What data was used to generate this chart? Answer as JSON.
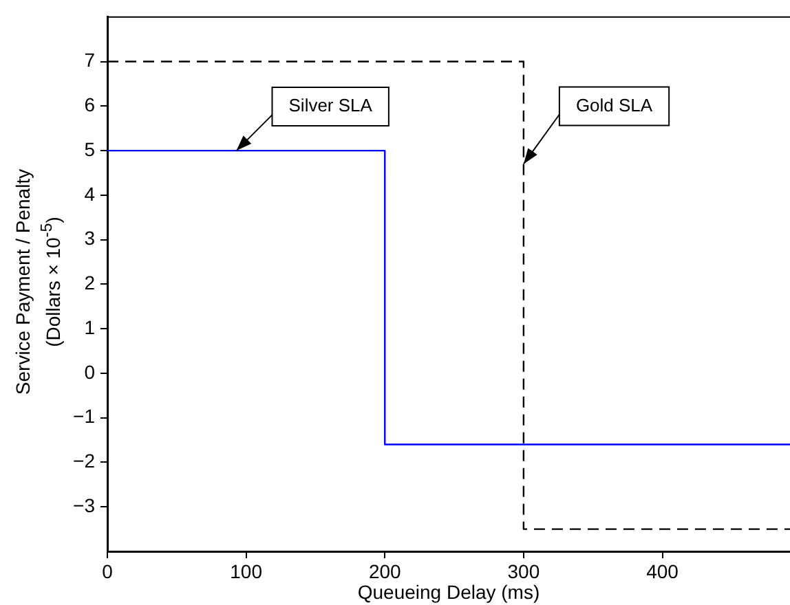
{
  "chart_data": {
    "type": "step",
    "xlabel": "Queueing Delay (ms)",
    "ylabel": "Service Payment / Penalty (Dollars × 10$^{-5}$)",
    "xlim": [
      0,
      492
    ],
    "xticks": [
      0,
      100,
      200,
      300,
      400
    ],
    "ylim": [
      -4,
      8
    ],
    "yticks": [
      -3,
      -2,
      -1,
      0,
      1,
      2,
      3,
      4,
      5,
      6,
      7
    ],
    "grid": false,
    "legend": false,
    "series": [
      {
        "color": "#0000ff",
        "line_style": "solid",
        "x": [
          0,
          200,
          492
        ],
        "values": [
          5,
          -1.6,
          -1.6
        ]
      },
      {
        "color": "#000000",
        "line_style": "dashed",
        "x": [
          0,
          300,
          492
        ],
        "values": [
          7,
          -3.5,
          -3.5
        ]
      }
    ],
    "annotations": [
      {
        "text": "Silver SLA",
        "x": 93,
        "y": 5
      },
      {
        "text": "Gold SLA",
        "x": 300,
        "y": 4.7
      }
    ]
  }
}
